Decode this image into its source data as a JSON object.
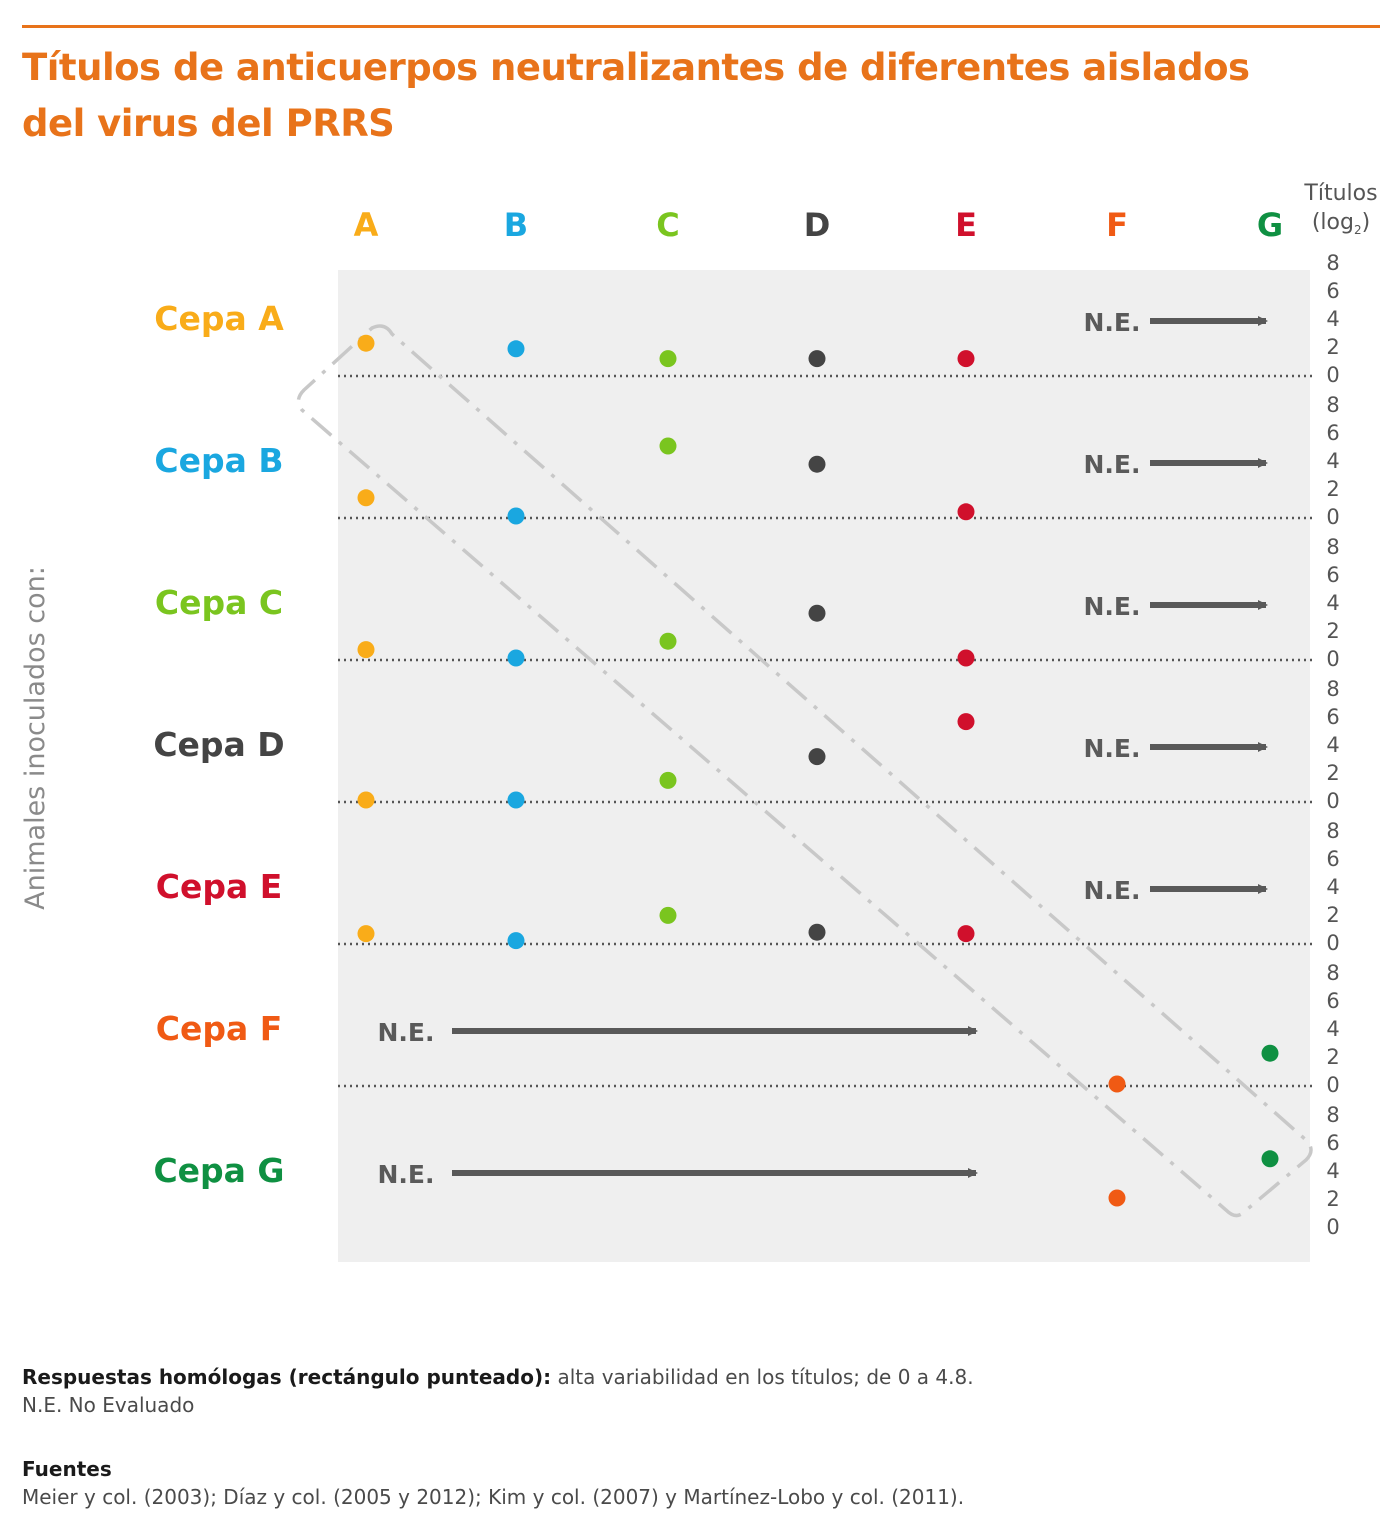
{
  "title_line1": "Títulos de anticuerpos neutralizantes de diferentes aislados",
  "title_line2": "del virus del PRRS",
  "colors": {
    "title": "#e8731a",
    "A": "#f9ac19",
    "B": "#1aa7e0",
    "C": "#7ac51f",
    "D": "#444444",
    "E": "#d0102c",
    "F": "#f05a14",
    "G": "#0f9042",
    "panel": "#efefef",
    "arrow": "#595959",
    "homologous_box": "#c8c8c8"
  },
  "chart_data": {
    "type": "scatter",
    "ylabel": "Animales inoculados con:",
    "y_unit_label_line1": "Títulos",
    "y_unit_label_line2": "(log",
    "y_unit_sub": "2",
    "y_unit_close": ")",
    "y_ticks": [
      "0",
      "2",
      "4",
      "6",
      "8"
    ],
    "ylim": [
      0,
      8
    ],
    "columns": [
      "A",
      "B",
      "C",
      "D",
      "E",
      "F",
      "G"
    ],
    "rows": [
      "Cepa A",
      "Cepa B",
      "Cepa C",
      "Cepa D",
      "Cepa E",
      "Cepa F",
      "Cepa G"
    ],
    "ne_label": "N.E.",
    "values": [
      {
        "strain": "Cepa A",
        "A": 2.2,
        "B": 1.8,
        "C": 1.1,
        "D": 1.1,
        "E": 1.1,
        "F": null,
        "G": null
      },
      {
        "strain": "Cepa B",
        "A": 1.3,
        "B": 0.0,
        "C": 5.0,
        "D": 3.7,
        "E": 0.3,
        "F": null,
        "G": null
      },
      {
        "strain": "Cepa C",
        "A": 0.6,
        "B": 0.0,
        "C": 1.2,
        "D": 3.2,
        "E": 0.0,
        "F": null,
        "G": null
      },
      {
        "strain": "Cepa D",
        "A": 0.0,
        "B": 0.0,
        "C": 1.4,
        "D": 3.1,
        "E": 5.6,
        "F": null,
        "G": null
      },
      {
        "strain": "Cepa E",
        "A": 0.6,
        "B": 0.1,
        "C": 1.9,
        "D": 0.7,
        "E": 0.6,
        "F": null,
        "G": null
      },
      {
        "strain": "Cepa F",
        "A": null,
        "B": null,
        "C": null,
        "D": null,
        "E": null,
        "F": 0.0,
        "G": 2.2
      },
      {
        "strain": "Cepa G",
        "A": null,
        "B": null,
        "C": null,
        "D": null,
        "E": null,
        "F": 2.0,
        "G": 4.8
      }
    ],
    "not_evaluated": [
      {
        "strain": "Cepa A",
        "from": "F",
        "to": "G"
      },
      {
        "strain": "Cepa B",
        "from": "F",
        "to": "G"
      },
      {
        "strain": "Cepa C",
        "from": "F",
        "to": "G"
      },
      {
        "strain": "Cepa D",
        "from": "F",
        "to": "G"
      },
      {
        "strain": "Cepa E",
        "from": "F",
        "to": "G"
      },
      {
        "strain": "Cepa F",
        "from": "A",
        "to": "E"
      },
      {
        "strain": "Cepa G",
        "from": "A",
        "to": "E"
      }
    ]
  },
  "notes": {
    "bold": "Respuestas homólogas (rectángulo punteado):",
    "text": " alta variabilidad en los títulos; de 0 a 4.8.",
    "ne": "N.E. No Evaluado"
  },
  "sources": {
    "heading": "Fuentes",
    "text": "Meier y col. (2003); Díaz y col. (2005 y 2012); Kim y col. (2007) y Martínez-Lobo y col. (2011)."
  }
}
